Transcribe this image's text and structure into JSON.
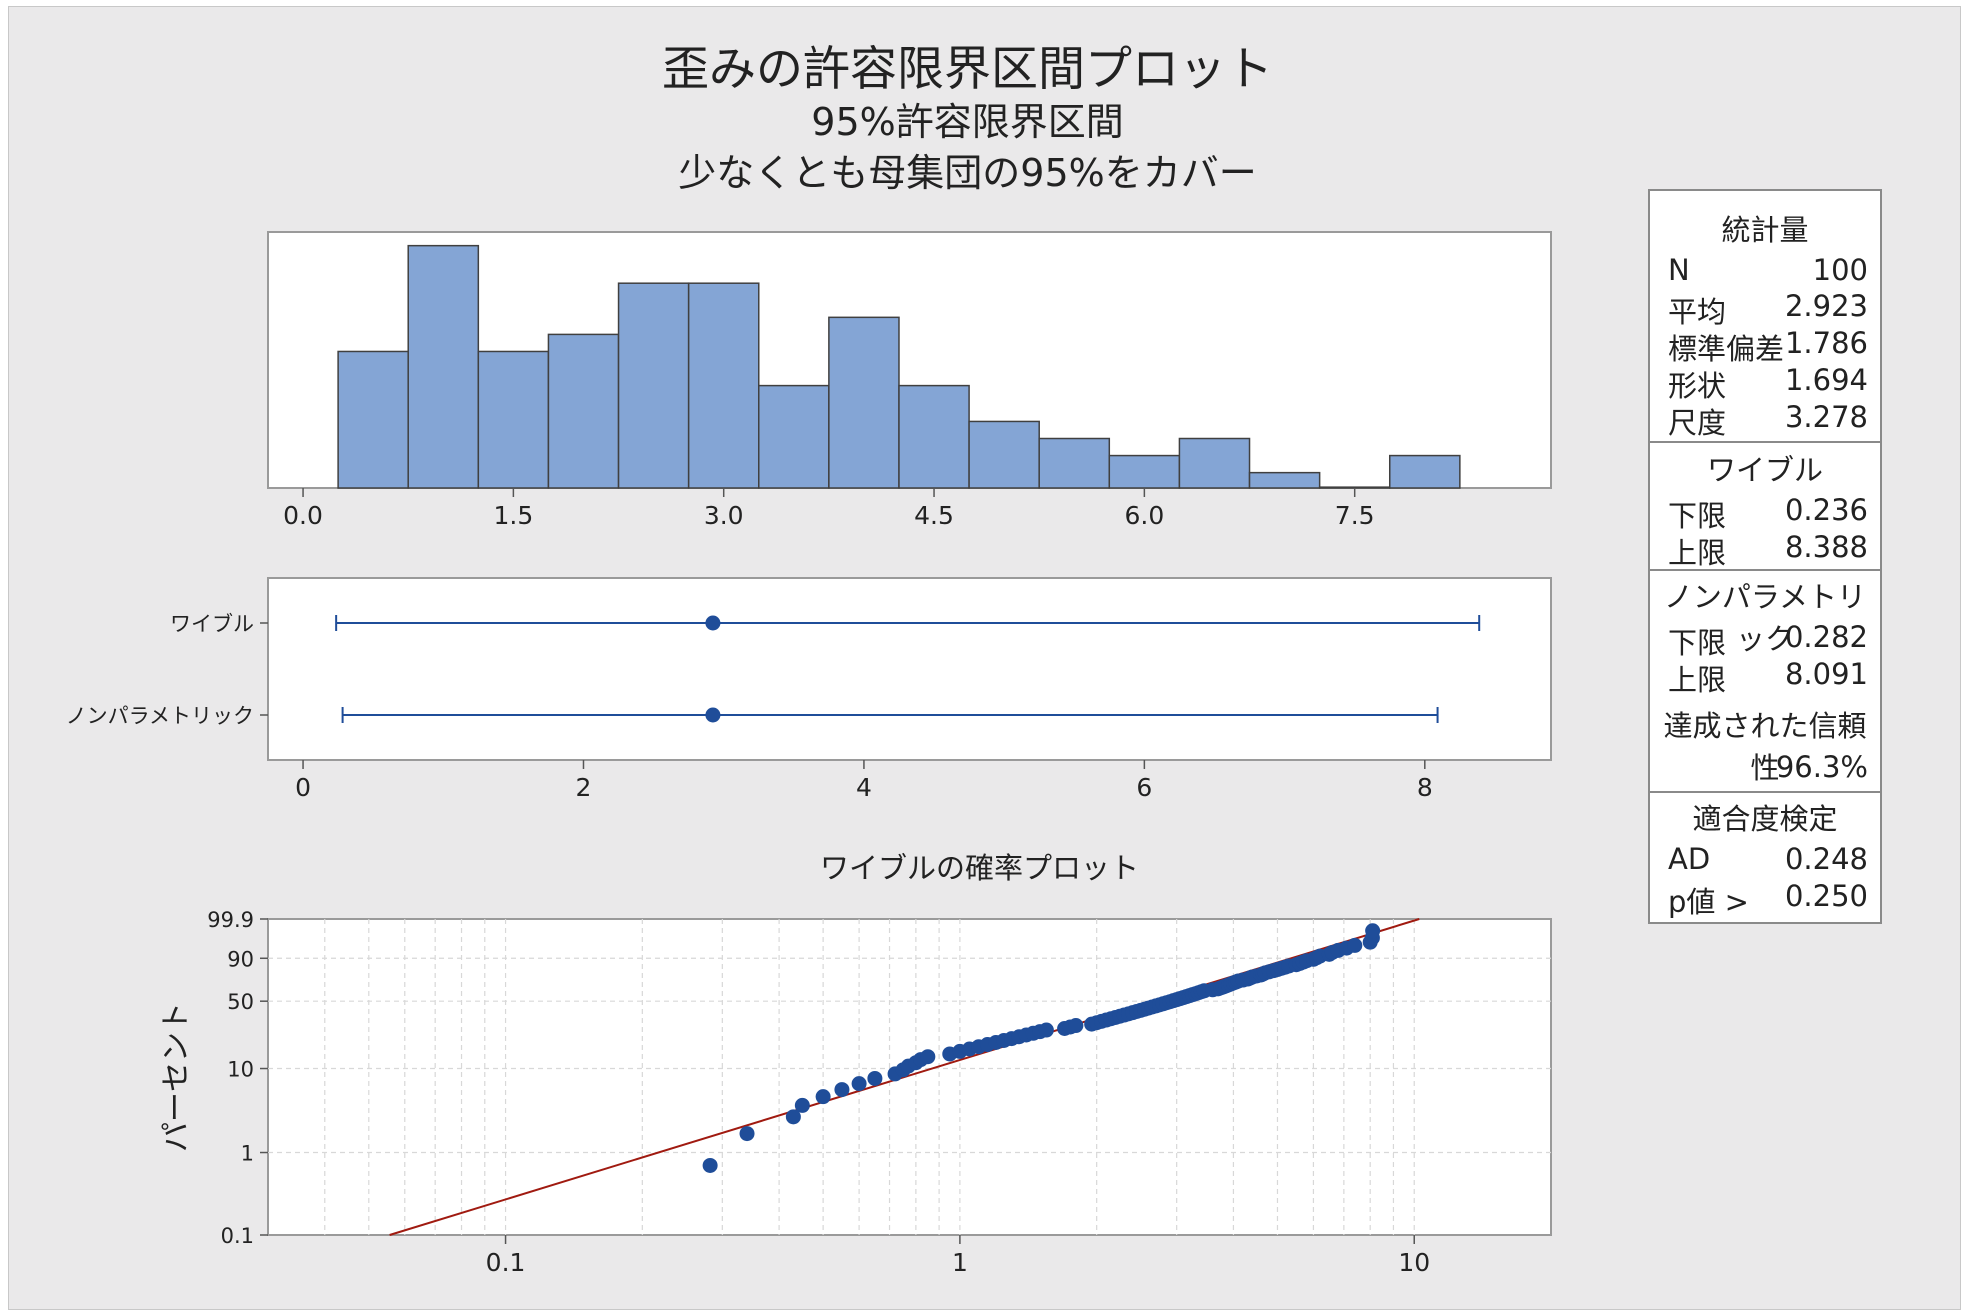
{
  "titles": {
    "main": "歪みの許容限界区間プロット",
    "sub1": "95%許容限界区間",
    "sub2": "少なくとも母集団の95%をカバー"
  },
  "colors": {
    "bar_fill": "#84a5d5",
    "marker": "#1f4d99",
    "interval_line": "#1f4d99",
    "fit_line": "#a01a10"
  },
  "chart_data": [
    {
      "type": "bar",
      "title": "",
      "bin_width": 0.5,
      "x_ticks": [
        "0.0",
        "1.5",
        "3.0",
        "4.5",
        "6.0",
        "7.5"
      ],
      "xlim": [
        -0.25,
        8.9
      ],
      "bins": [
        {
          "start": 0.25,
          "count": 8
        },
        {
          "start": 0.75,
          "count": 14.2
        },
        {
          "start": 1.25,
          "count": 8
        },
        {
          "start": 1.75,
          "count": 9
        },
        {
          "start": 2.25,
          "count": 12
        },
        {
          "start": 2.75,
          "count": 12
        },
        {
          "start": 3.25,
          "count": 6
        },
        {
          "start": 3.75,
          "count": 10
        },
        {
          "start": 4.25,
          "count": 6
        },
        {
          "start": 4.75,
          "count": 3.9
        },
        {
          "start": 5.25,
          "count": 2.9
        },
        {
          "start": 5.75,
          "count": 1.9
        },
        {
          "start": 6.25,
          "count": 2.9
        },
        {
          "start": 6.75,
          "count": 0.9
        },
        {
          "start": 7.25,
          "count": 0.05
        },
        {
          "start": 7.75,
          "count": 1.9
        }
      ]
    },
    {
      "type": "interval",
      "x_ticks": [
        "0",
        "2",
        "4",
        "6",
        "8"
      ],
      "xlim": [
        -0.25,
        8.9
      ],
      "intervals": [
        {
          "label": "ワイブル",
          "lower": 0.236,
          "upper": 8.388,
          "center": 2.923
        },
        {
          "label": "ノンパラメトリック",
          "lower": 0.282,
          "upper": 8.091,
          "center": 2.923
        }
      ]
    },
    {
      "type": "scatter",
      "title": "ワイブルの確率プロット",
      "ylabel": "パーセント",
      "x_scale": "log",
      "x_ticks": [
        "0.1",
        "1",
        "10"
      ],
      "y_ticks": [
        "99.9",
        "90",
        "50",
        "10",
        "1",
        "0.1"
      ],
      "xlim": [
        0.03,
        20
      ],
      "fit_line": {
        "shape": 1.694,
        "scale": 3.278
      },
      "points": [
        0.282,
        0.34,
        0.43,
        0.45,
        0.5,
        0.55,
        0.6,
        0.65,
        0.72,
        0.75,
        0.77,
        0.8,
        0.82,
        0.85,
        0.95,
        1.0,
        1.05,
        1.1,
        1.15,
        1.2,
        1.25,
        1.3,
        1.35,
        1.4,
        1.45,
        1.5,
        1.55,
        1.7,
        1.75,
        1.8,
        1.95,
        2.0,
        2.05,
        2.1,
        2.15,
        2.2,
        2.25,
        2.3,
        2.35,
        2.4,
        2.45,
        2.5,
        2.55,
        2.6,
        2.65,
        2.7,
        2.75,
        2.8,
        2.85,
        2.9,
        2.95,
        3.0,
        3.05,
        3.1,
        3.15,
        3.2,
        3.25,
        3.3,
        3.35,
        3.4,
        3.45,
        3.6,
        3.7,
        3.75,
        3.8,
        3.85,
        3.9,
        3.95,
        4.0,
        4.05,
        4.1,
        4.2,
        4.3,
        4.35,
        4.4,
        4.5,
        4.6,
        4.65,
        4.7,
        4.8,
        4.9,
        5.0,
        5.1,
        5.2,
        5.3,
        5.5,
        5.6,
        5.7,
        5.8,
        6.0,
        6.1,
        6.2,
        6.5,
        6.6,
        6.8,
        7.1,
        7.4,
        8.0,
        8.09,
        8.1
      ]
    }
  ],
  "stats_panel": {
    "statistics": {
      "header": "統計量",
      "rows": [
        {
          "label": "N",
          "value": "100"
        },
        {
          "label": "平均",
          "value": "2.923"
        },
        {
          "label": "標準偏差",
          "value": "1.786"
        },
        {
          "label": "形状",
          "value": "1.694"
        },
        {
          "label": "尺度",
          "value": "3.278"
        }
      ]
    },
    "weibull": {
      "header": "ワイブル",
      "rows": [
        {
          "label": "下限",
          "value": "0.236"
        },
        {
          "label": "上限",
          "value": "8.388"
        }
      ]
    },
    "nonparametric": {
      "header": "ノンパラメトリック",
      "rows": [
        {
          "label": "下限",
          "value": "0.282"
        },
        {
          "label": "上限",
          "value": "8.091"
        }
      ],
      "confidence_label": "達成された信頼性",
      "confidence_value": "96.3%"
    },
    "goodness_of_fit": {
      "header": "適合度検定",
      "rows": [
        {
          "label": "AD",
          "value": "0.248"
        },
        {
          "label": "p値 >",
          "value": "0.250"
        }
      ]
    }
  }
}
